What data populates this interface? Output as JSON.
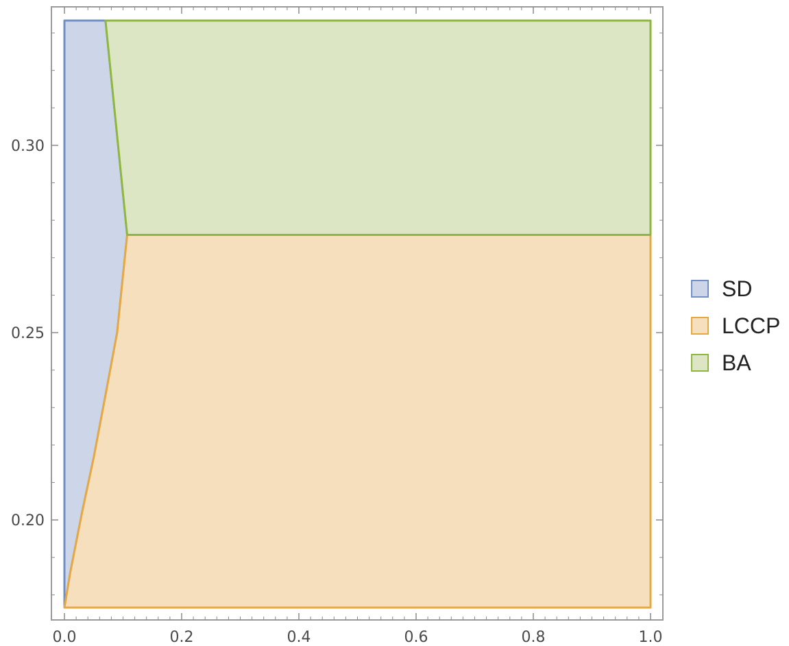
{
  "chart_data": {
    "type": "area",
    "xlim": [
      0.0,
      1.0
    ],
    "ylim": [
      0.1766,
      0.3333
    ],
    "x_ticks": [
      0.0,
      0.2,
      0.4,
      0.6,
      0.8,
      1.0
    ],
    "x_tick_labels": [
      "0.0",
      "0.2",
      "0.4",
      "0.6",
      "0.8",
      "1.0"
    ],
    "y_ticks": [
      0.2,
      0.25,
      0.3
    ],
    "y_tick_labels": [
      "0.20",
      "0.25",
      "0.30"
    ],
    "grid": false,
    "legend_position": "right",
    "regions": [
      {
        "name": "SD",
        "fill": "#cdd6e8",
        "stroke": "#6f8fc6",
        "polygon": [
          [
            0.0,
            0.1766
          ],
          [
            0.0,
            0.3333
          ],
          [
            0.07,
            0.3333
          ],
          [
            0.107,
            0.2761
          ],
          [
            0.09,
            0.25
          ],
          [
            0.07,
            0.2333
          ],
          [
            0.05,
            0.2167
          ],
          [
            0.03,
            0.202
          ],
          [
            0.01,
            0.186
          ]
        ]
      },
      {
        "name": "LCCP",
        "fill": "#f5dfbc",
        "stroke": "#e6a843",
        "polygon": [
          [
            0.0,
            0.1766
          ],
          [
            0.01,
            0.186
          ],
          [
            0.03,
            0.202
          ],
          [
            0.05,
            0.2167
          ],
          [
            0.07,
            0.2333
          ],
          [
            0.09,
            0.25
          ],
          [
            0.107,
            0.2761
          ],
          [
            1.0,
            0.2761
          ],
          [
            1.0,
            0.1766
          ]
        ]
      },
      {
        "name": "BA",
        "fill": "#dde6c4",
        "stroke": "#8fb63f",
        "polygon": [
          [
            0.07,
            0.3333
          ],
          [
            1.0,
            0.3333
          ],
          [
            1.0,
            0.2761
          ],
          [
            0.107,
            0.2761
          ]
        ]
      }
    ]
  }
}
